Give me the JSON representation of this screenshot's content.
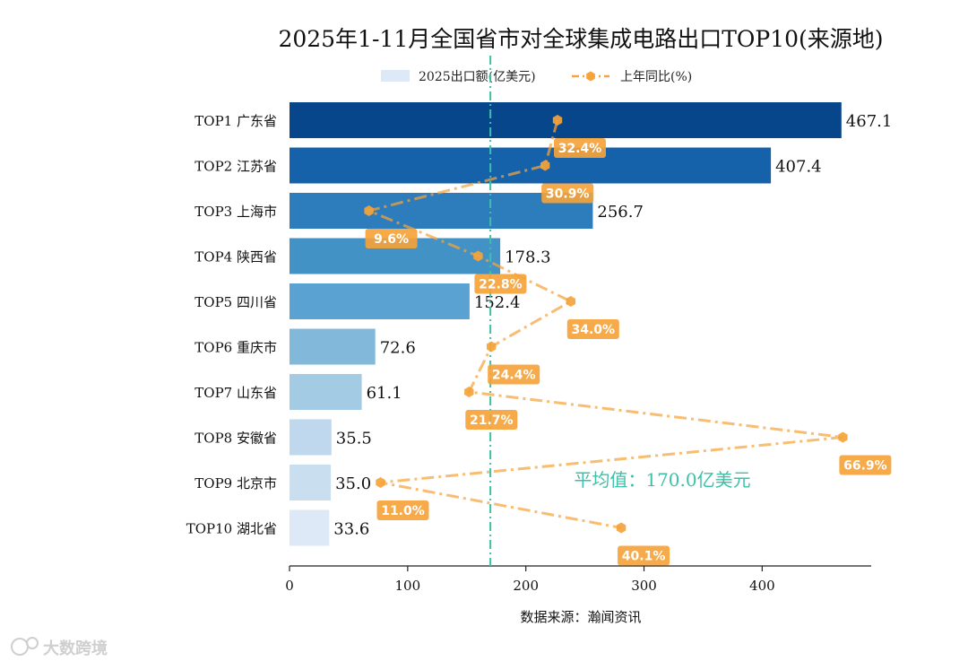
{
  "chart_data": {
    "type": "bar",
    "orientation": "horizontal",
    "title": "2025年1-11月全国省市对全球集成电路出口TOP10(来源地)",
    "categories": [
      "TOP1 广东省",
      "TOP2 江苏省",
      "TOP3 上海市",
      "TOP4 陕西省",
      "TOP5 四川省",
      "TOP6 重庆市",
      "TOP7 山东省",
      "TOP8 安徽省",
      "TOP9 北京市",
      "TOP10 湖北省"
    ],
    "series": [
      {
        "name": "2025出口额(亿美元)",
        "type": "bar",
        "values": [
          467.1,
          407.4,
          256.7,
          178.3,
          152.4,
          72.6,
          61.1,
          35.5,
          35.0,
          33.6
        ],
        "value_labels": [
          "467.1",
          "407.4",
          "256.7",
          "178.3",
          "152.4",
          "72.6",
          "61.1",
          "35.5",
          "35.0",
          "33.6"
        ],
        "colors": [
          "#08468c",
          "#1561aa",
          "#2d7cbc",
          "#4292c6",
          "#5aa2d1",
          "#82b9db",
          "#a3cbe4",
          "#bfd8ee",
          "#c9deef",
          "#dde9f6"
        ]
      },
      {
        "name": "上年同比(%)",
        "type": "line",
        "line_style": "dashdot",
        "marker": "hexagon",
        "values": [
          32.4,
          30.9,
          9.6,
          22.8,
          34.0,
          24.4,
          21.7,
          66.9,
          11.0,
          40.1
        ],
        "value_labels": [
          "32.4%",
          "30.9%",
          "9.6%",
          "22.8%",
          "34.0%",
          "24.4%",
          "21.7%",
          "66.9%",
          "11.0%",
          "40.1%"
        ],
        "color": "#f5a33a"
      }
    ],
    "x_axis": {
      "range": [
        0,
        490
      ],
      "ticks": [
        0,
        100,
        200,
        300,
        400
      ],
      "tick_labels": [
        "0",
        "100",
        "200",
        "300",
        "400"
      ]
    },
    "average": {
      "value": 170.0,
      "label": "平均值：170.0亿美元",
      "color": "#3cc1a8"
    },
    "legend_position": "top-center",
    "source": "数据来源：瀚闻资讯"
  },
  "watermark": "大数跨境",
  "colors": {
    "avg_line": "#3cc1a8",
    "line_series": "#f5a33a",
    "label_box": "#f5a33a"
  }
}
